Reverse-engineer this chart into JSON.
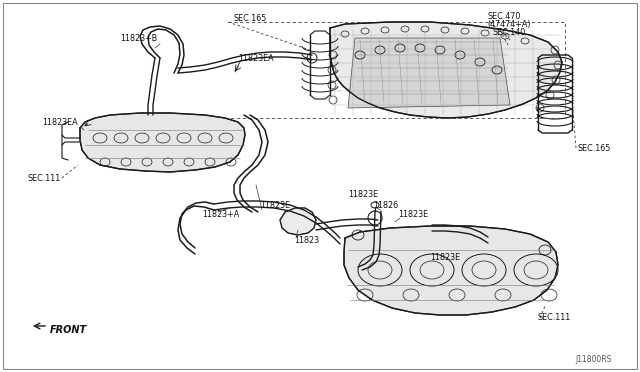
{
  "bg_color": "#ffffff",
  "line_color": "#1a1a1a",
  "text_color": "#111111",
  "fig_width": 6.4,
  "fig_height": 3.72,
  "dpi": 100,
  "watermark": "J11800RS",
  "border_color": "#888888",
  "labels": {
    "sec165_top": "SEC.165",
    "sec470": "SEC.470",
    "sec470b": "(47474+A)",
    "sec140": "SEC.140",
    "sec165_right": "SEC.165",
    "sec111_left": "SEC.111",
    "sec111_bottom": "SEC.111",
    "l11823B": "11823+B",
    "l11823EA_top": "11823EA",
    "l11823EA_left": "11823EA",
    "l11823E_mid": "11823E",
    "l11823E_right1": "11823E",
    "l11823E_right2": "11823E",
    "l11823E_lower": "11823E",
    "l11823": "11823",
    "l11826": "11826",
    "l11823A": "11823+A",
    "front": "FRONT"
  },
  "img_border": [
    5,
    5,
    635,
    367
  ]
}
